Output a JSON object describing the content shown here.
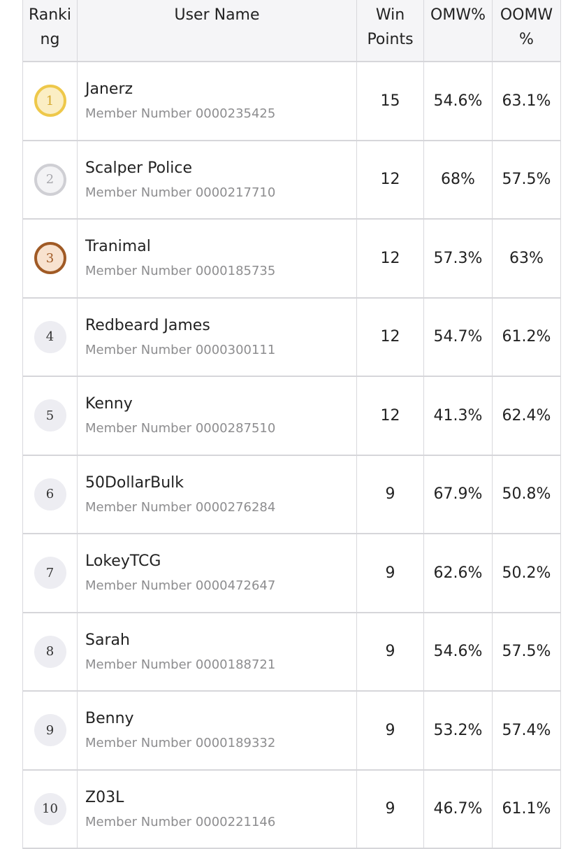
{
  "columns": {
    "ranking": "Ranki\nng",
    "user_name": "User Name",
    "win_points": "Win\nPoints",
    "omw": "OMW%",
    "oomw": "OOMW\n%"
  },
  "member_prefix": "Member Number",
  "rows": [
    {
      "rank": "1",
      "name": "Janerz",
      "member_number": "0000235425",
      "win_points": "15",
      "omw": "54.6%",
      "oomw": "63.1%",
      "badge": "gold"
    },
    {
      "rank": "2",
      "name": "Scalper Police",
      "member_number": "0000217710",
      "win_points": "12",
      "omw": "68%",
      "oomw": "57.5%",
      "badge": "silver"
    },
    {
      "rank": "3",
      "name": "Tranimal",
      "member_number": "0000185735",
      "win_points": "12",
      "omw": "57.3%",
      "oomw": "63%",
      "badge": "bronze"
    },
    {
      "rank": "4",
      "name": "Redbeard James",
      "member_number": "0000300111",
      "win_points": "12",
      "omw": "54.7%",
      "oomw": "61.2%",
      "badge": "plain"
    },
    {
      "rank": "5",
      "name": "Kenny",
      "member_number": "0000287510",
      "win_points": "12",
      "omw": "41.3%",
      "oomw": "62.4%",
      "badge": "plain"
    },
    {
      "rank": "6",
      "name": "50DollarBulk",
      "member_number": "0000276284",
      "win_points": "9",
      "omw": "67.9%",
      "oomw": "50.8%",
      "badge": "plain"
    },
    {
      "rank": "7",
      "name": "LokeyTCG",
      "member_number": "0000472647",
      "win_points": "9",
      "omw": "62.6%",
      "oomw": "50.2%",
      "badge": "plain"
    },
    {
      "rank": "8",
      "name": "Sarah",
      "member_number": "0000188721",
      "win_points": "9",
      "omw": "54.6%",
      "oomw": "57.5%",
      "badge": "plain"
    },
    {
      "rank": "9",
      "name": "Benny",
      "member_number": "0000189332",
      "win_points": "9",
      "omw": "53.2%",
      "oomw": "57.4%",
      "badge": "plain"
    },
    {
      "rank": "10",
      "name": "Z03L",
      "member_number": "0000221146",
      "win_points": "9",
      "omw": "46.7%",
      "oomw": "61.1%",
      "badge": "plain"
    }
  ]
}
